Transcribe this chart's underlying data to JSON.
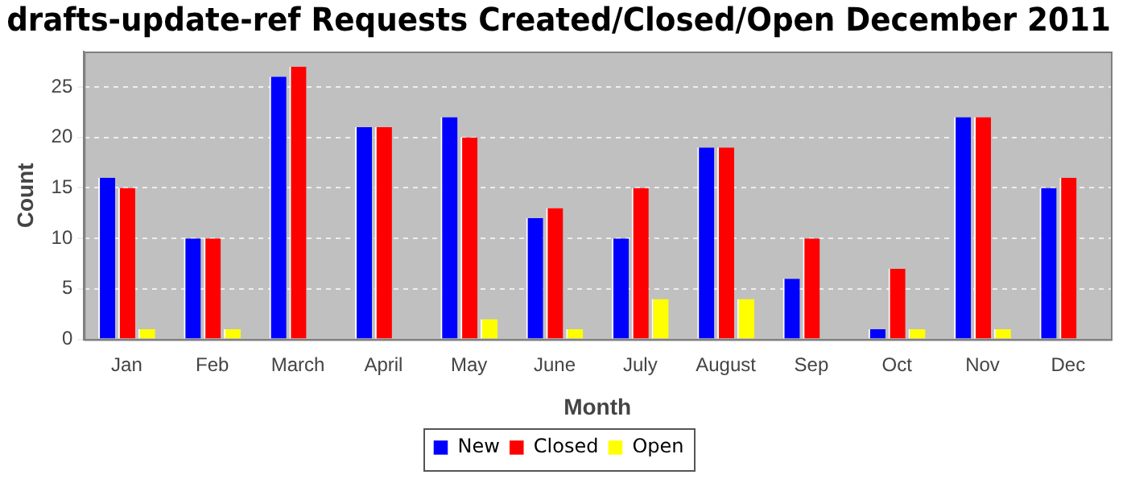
{
  "chart_data": {
    "type": "bar",
    "title": "drafts-update-ref Requests Created/Closed/Open December 2011",
    "xlabel": "Month",
    "ylabel": "Count",
    "categories": [
      "Jan",
      "Feb",
      "March",
      "April",
      "May",
      "June",
      "July",
      "August",
      "Sep",
      "Oct",
      "Nov",
      "Dec"
    ],
    "series": [
      {
        "name": "New",
        "color": "#0000ff",
        "values": [
          16,
          10,
          26,
          21,
          22,
          12,
          10,
          19,
          6,
          1,
          22,
          15
        ]
      },
      {
        "name": "Closed",
        "color": "#ff0000",
        "values": [
          15,
          10,
          27,
          21,
          20,
          13,
          15,
          19,
          10,
          7,
          22,
          16
        ]
      },
      {
        "name": "Open",
        "color": "#ffff00",
        "values": [
          1,
          1,
          0,
          0,
          2,
          1,
          4,
          4,
          0,
          1,
          1,
          0
        ]
      }
    ],
    "ylim": [
      0,
      28.5
    ],
    "yticks": [
      0,
      5,
      10,
      15,
      20,
      25
    ],
    "grid": "y",
    "legend": "bottom"
  }
}
